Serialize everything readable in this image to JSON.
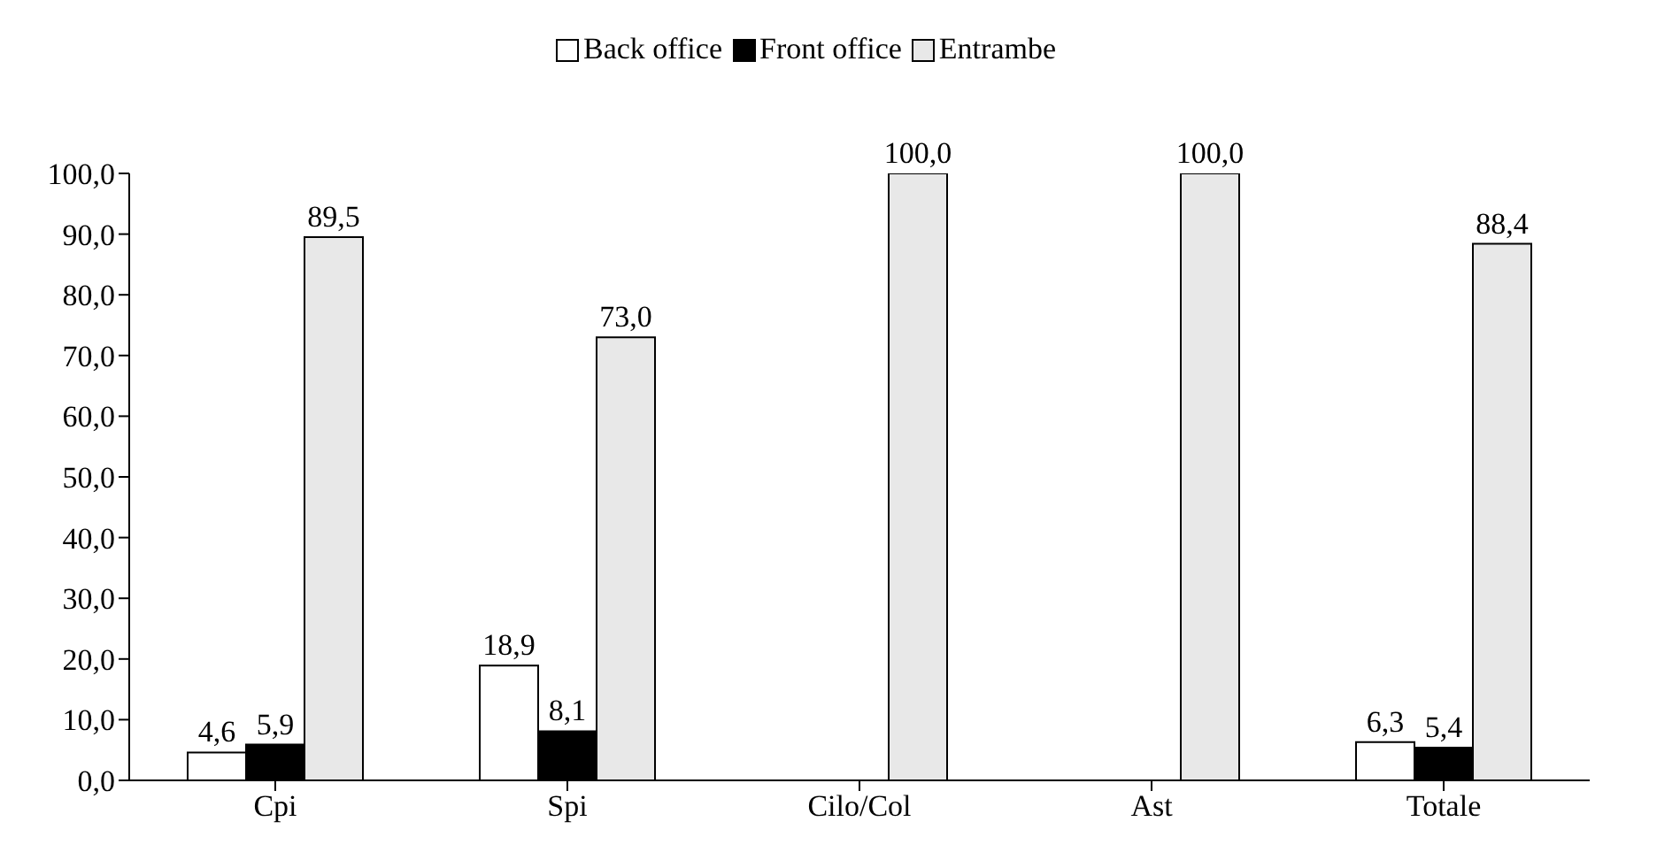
{
  "chart_data": {
    "type": "bar",
    "categories": [
      "Cpi",
      "Spi",
      "Cilo/Col",
      "Ast",
      "Totale"
    ],
    "series": [
      {
        "name": "Back office",
        "color": "#ffffff",
        "values": [
          4.6,
          18.9,
          null,
          null,
          6.3
        ],
        "value_labels": [
          "4,6",
          "18,9",
          null,
          null,
          "6,3"
        ]
      },
      {
        "name": "Front office",
        "color": "#000000",
        "values": [
          5.9,
          8.1,
          null,
          null,
          5.4
        ],
        "value_labels": [
          "5,9",
          "8,1",
          null,
          null,
          "5,4"
        ]
      },
      {
        "name": "Entrambe",
        "color": "#e8e8e8",
        "values": [
          89.5,
          73.0,
          100.0,
          100.0,
          88.4
        ],
        "value_labels": [
          "89,5",
          "73,0",
          "100,0",
          "100,0",
          "88,4"
        ]
      }
    ],
    "ylim": [
      0,
      100
    ],
    "yticks": [
      {
        "value": 0,
        "label": "0,0"
      },
      {
        "value": 10,
        "label": "10,0"
      },
      {
        "value": 20,
        "label": "20,0"
      },
      {
        "value": 30,
        "label": "30,0"
      },
      {
        "value": 40,
        "label": "40,0"
      },
      {
        "value": 50,
        "label": "50,0"
      },
      {
        "value": 60,
        "label": "60,0"
      },
      {
        "value": 70,
        "label": "70,0"
      },
      {
        "value": 80,
        "label": "80,0"
      },
      {
        "value": 90,
        "label": "90,0"
      },
      {
        "value": 100,
        "label": "100,0"
      }
    ],
    "grid": false,
    "legend": "top"
  }
}
